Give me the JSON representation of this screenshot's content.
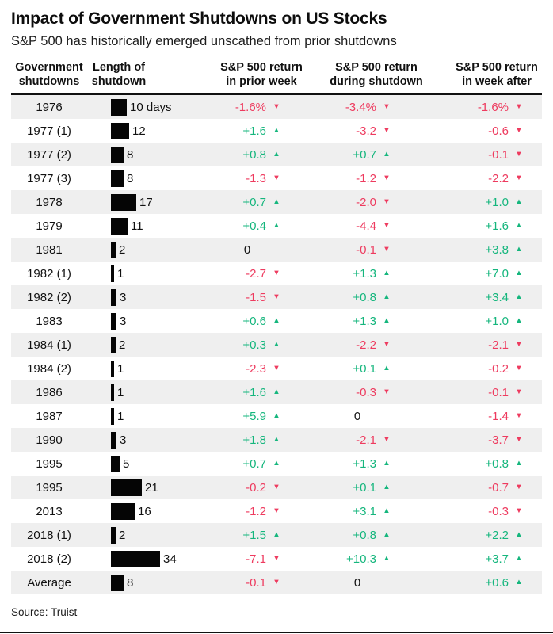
{
  "title": "Impact of Government Shutdowns on US Stocks",
  "subtitle": "S&P 500 has historically emerged unscathed from prior shutdowns",
  "source": "Source: Truist",
  "colors": {
    "positive": "#15b67d",
    "negative": "#ee3b5f",
    "ink": "#111111",
    "row_stripe": "#efefef",
    "bar": "#050505"
  },
  "icons": {
    "up_arrow": "▲",
    "down_arrow": "▼"
  },
  "header": {
    "cols": [
      {
        "line1": "Government",
        "line2": "shutdowns"
      },
      {
        "line1": "Length of",
        "line2": "shutdown"
      },
      {
        "line1": "S&P 500 return",
        "line2": "in prior week"
      },
      {
        "line1": "S&P 500 return",
        "line2": "during shutdown"
      },
      {
        "line1": "S&P 500 return",
        "line2": "in week after"
      }
    ]
  },
  "chart_data": {
    "type": "table",
    "title": "Impact of Government Shutdowns on US Stocks",
    "subtitle": "S&P 500 has historically emerged unscathed from prior shutdowns",
    "columns": [
      "Government shutdowns",
      "Length of shutdown (days)",
      "S&P 500 return in prior week (%)",
      "S&P 500 return during shutdown (%)",
      "S&P 500 return in week after (%)"
    ],
    "rows": [
      {
        "shutdown": "1976",
        "length_days": 10,
        "length_label": "10 days",
        "prior": {
          "text": "-1.6%",
          "dir": "down"
        },
        "during": {
          "text": "-3.4%",
          "dir": "down"
        },
        "after": {
          "text": "-1.6%",
          "dir": "down"
        }
      },
      {
        "shutdown": "1977 (1)",
        "length_days": 12,
        "length_label": "12",
        "prior": {
          "text": "+1.6",
          "dir": "up"
        },
        "during": {
          "text": "-3.2",
          "dir": "down"
        },
        "after": {
          "text": "-0.6",
          "dir": "down"
        }
      },
      {
        "shutdown": "1977 (2)",
        "length_days": 8,
        "length_label": "8",
        "prior": {
          "text": "+0.8",
          "dir": "up"
        },
        "during": {
          "text": "+0.7",
          "dir": "up"
        },
        "after": {
          "text": "-0.1",
          "dir": "down"
        }
      },
      {
        "shutdown": "1977 (3)",
        "length_days": 8,
        "length_label": "8",
        "prior": {
          "text": "-1.3",
          "dir": "down"
        },
        "during": {
          "text": "-1.2",
          "dir": "down"
        },
        "after": {
          "text": "-2.2",
          "dir": "down"
        }
      },
      {
        "shutdown": "1978",
        "length_days": 17,
        "length_label": "17",
        "prior": {
          "text": "+0.7",
          "dir": "up"
        },
        "during": {
          "text": "-2.0",
          "dir": "down"
        },
        "after": {
          "text": "+1.0",
          "dir": "up"
        }
      },
      {
        "shutdown": "1979",
        "length_days": 11,
        "length_label": "11",
        "prior": {
          "text": "+0.4",
          "dir": "up"
        },
        "during": {
          "text": "-4.4",
          "dir": "down"
        },
        "after": {
          "text": "+1.6",
          "dir": "up"
        }
      },
      {
        "shutdown": "1981",
        "length_days": 2,
        "length_label": "2",
        "prior": {
          "text": "0",
          "dir": "none"
        },
        "during": {
          "text": "-0.1",
          "dir": "down"
        },
        "after": {
          "text": "+3.8",
          "dir": "up"
        }
      },
      {
        "shutdown": "1982 (1)",
        "length_days": 1,
        "length_label": "1",
        "prior": {
          "text": "-2.7",
          "dir": "down"
        },
        "during": {
          "text": "+1.3",
          "dir": "up"
        },
        "after": {
          "text": "+7.0",
          "dir": "up"
        }
      },
      {
        "shutdown": "1982 (2)",
        "length_days": 3,
        "length_label": "3",
        "prior": {
          "text": "-1.5",
          "dir": "down"
        },
        "during": {
          "text": "+0.8",
          "dir": "up"
        },
        "after": {
          "text": "+3.4",
          "dir": "up"
        }
      },
      {
        "shutdown": "1983",
        "length_days": 3,
        "length_label": "3",
        "prior": {
          "text": "+0.6",
          "dir": "up"
        },
        "during": {
          "text": "+1.3",
          "dir": "up"
        },
        "after": {
          "text": "+1.0",
          "dir": "up"
        }
      },
      {
        "shutdown": "1984 (1)",
        "length_days": 2,
        "length_label": "2",
        "prior": {
          "text": "+0.3",
          "dir": "up"
        },
        "during": {
          "text": "-2.2",
          "dir": "down"
        },
        "after": {
          "text": "-2.1",
          "dir": "down"
        }
      },
      {
        "shutdown": "1984 (2)",
        "length_days": 1,
        "length_label": "1",
        "prior": {
          "text": "-2.3",
          "dir": "down"
        },
        "during": {
          "text": "+0.1",
          "dir": "up"
        },
        "after": {
          "text": "-0.2",
          "dir": "down"
        }
      },
      {
        "shutdown": "1986",
        "length_days": 1,
        "length_label": "1",
        "prior": {
          "text": "+1.6",
          "dir": "up"
        },
        "during": {
          "text": "-0.3",
          "dir": "down"
        },
        "after": {
          "text": "-0.1",
          "dir": "down"
        }
      },
      {
        "shutdown": "1987",
        "length_days": 1,
        "length_label": "1",
        "prior": {
          "text": "+5.9",
          "dir": "up"
        },
        "during": {
          "text": "0",
          "dir": "none"
        },
        "after": {
          "text": "-1.4",
          "dir": "down"
        }
      },
      {
        "shutdown": "1990",
        "length_days": 3,
        "length_label": "3",
        "prior": {
          "text": "+1.8",
          "dir": "up"
        },
        "during": {
          "text": "-2.1",
          "dir": "down"
        },
        "after": {
          "text": "-3.7",
          "dir": "down"
        }
      },
      {
        "shutdown": "1995",
        "length_days": 5,
        "length_label": "5",
        "prior": {
          "text": "+0.7",
          "dir": "up"
        },
        "during": {
          "text": "+1.3",
          "dir": "up"
        },
        "after": {
          "text": "+0.8",
          "dir": "up"
        }
      },
      {
        "shutdown": "1995",
        "length_days": 21,
        "length_label": "21",
        "prior": {
          "text": "-0.2",
          "dir": "down"
        },
        "during": {
          "text": "+0.1",
          "dir": "up"
        },
        "after": {
          "text": "-0.7",
          "dir": "down"
        }
      },
      {
        "shutdown": "2013",
        "length_days": 16,
        "length_label": "16",
        "prior": {
          "text": "-1.2",
          "dir": "down"
        },
        "during": {
          "text": "+3.1",
          "dir": "up"
        },
        "after": {
          "text": "-0.3",
          "dir": "down"
        }
      },
      {
        "shutdown": "2018 (1)",
        "length_days": 2,
        "length_label": "2",
        "prior": {
          "text": "+1.5",
          "dir": "up"
        },
        "during": {
          "text": "+0.8",
          "dir": "up"
        },
        "after": {
          "text": "+2.2",
          "dir": "up"
        }
      },
      {
        "shutdown": "2018 (2)",
        "length_days": 34,
        "length_label": "34",
        "prior": {
          "text": "-7.1",
          "dir": "down"
        },
        "during": {
          "text": "+10.3",
          "dir": "up"
        },
        "after": {
          "text": "+3.7",
          "dir": "up"
        }
      },
      {
        "shutdown": "Average",
        "length_days": 8,
        "length_label": "8",
        "prior": {
          "text": "-0.1",
          "dir": "down"
        },
        "during": {
          "text": "0",
          "dir": "none"
        },
        "after": {
          "text": "+0.6",
          "dir": "up"
        }
      }
    ]
  }
}
